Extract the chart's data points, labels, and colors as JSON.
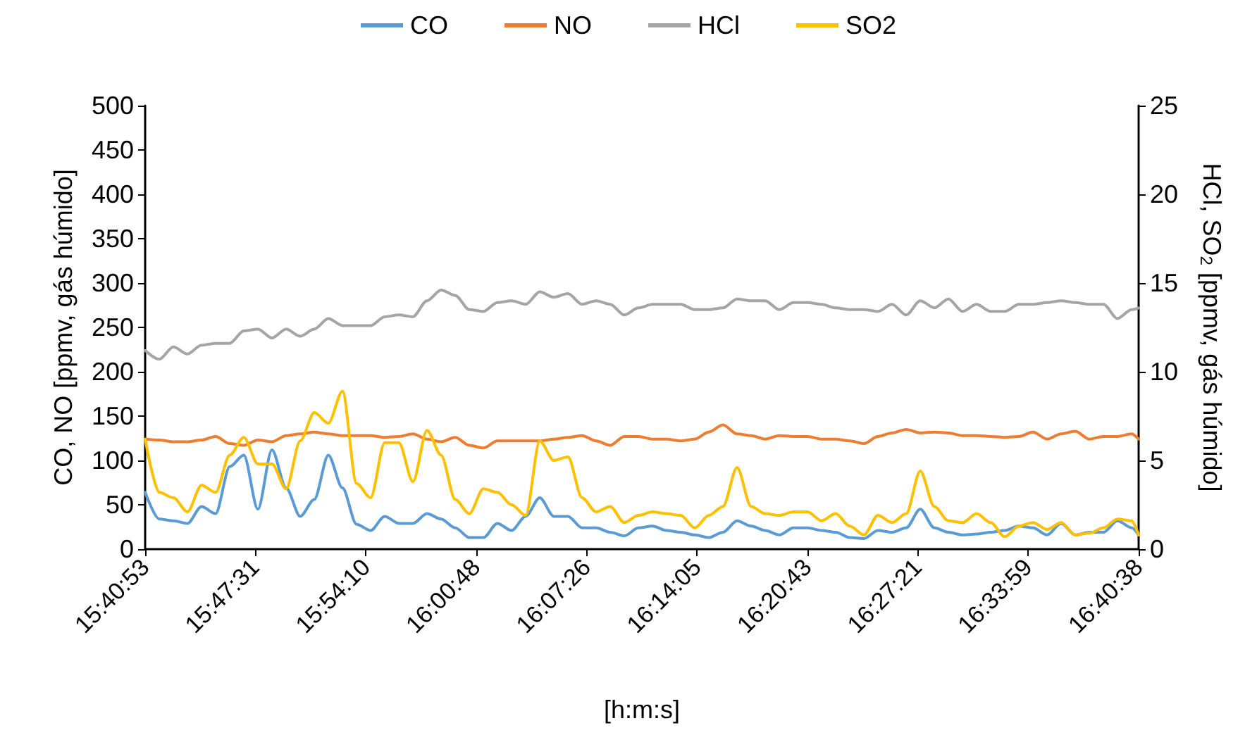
{
  "chart_data": {
    "type": "line",
    "xlabel": "[h:m:s]",
    "ylabel": "CO, NO [ppmv, gás húmido]",
    "y2label": "HCl, SO$_{2}$ [ppmv, gás húmido]",
    "x": [
      15.6814,
      15.6955,
      15.7097,
      15.7238,
      15.7379,
      15.752,
      15.7662,
      15.7803,
      15.7944,
      15.8085,
      15.8227,
      15.8368,
      15.8509,
      15.865,
      15.8792,
      15.8933,
      15.9074,
      15.9215,
      15.9357,
      15.9498,
      15.9639,
      15.978,
      15.9922,
      16.0063,
      16.0204,
      16.0345,
      16.0487,
      16.0628,
      16.0769,
      16.091,
      16.1052,
      16.1193,
      16.1334,
      16.1475,
      16.1617,
      16.1758,
      16.1899,
      16.204,
      16.2182,
      16.2323,
      16.2464,
      16.2605,
      16.2747,
      16.2888,
      16.3029,
      16.317,
      16.3312,
      16.3453,
      16.3594,
      16.3735,
      16.3877,
      16.4018,
      16.4159,
      16.43,
      16.4442,
      16.4583,
      16.4724,
      16.4865,
      16.5007,
      16.5148,
      16.5289,
      16.543,
      16.5572,
      16.5713,
      16.5854,
      16.5995,
      16.6137,
      16.6278,
      16.6419,
      16.656,
      16.6702,
      16.6772
    ],
    "series": [
      {
        "name": "CO",
        "color": "#5b9bd5",
        "values": [
          64,
          34,
          32,
          29,
          48,
          40,
          93,
          106,
          45,
          112,
          69,
          37,
          56,
          106,
          69,
          28,
          21,
          37,
          29,
          29,
          40,
          34,
          24,
          13,
          13,
          29,
          21,
          37,
          58,
          37,
          37,
          24,
          24,
          19,
          15,
          24,
          26,
          21,
          19,
          16,
          13,
          19,
          32,
          26,
          21,
          16,
          24,
          24,
          21,
          19,
          13,
          12,
          21,
          19,
          24,
          45,
          24,
          19,
          16,
          17,
          19,
          21,
          26,
          24,
          16,
          29,
          16,
          19,
          19,
          32,
          24,
          16
        ]
      },
      {
        "name": "NO",
        "color": "#ed7d31",
        "values": [
          124,
          123,
          121,
          121,
          123,
          127,
          119,
          117,
          123,
          121,
          128,
          130,
          132,
          130,
          128,
          128,
          128,
          126,
          127,
          130,
          124,
          121,
          126,
          117,
          114,
          122,
          122,
          122,
          122,
          124,
          126,
          128,
          122,
          117,
          127,
          127,
          124,
          124,
          122,
          124,
          132,
          140,
          130,
          128,
          124,
          128,
          127,
          127,
          124,
          124,
          122,
          119,
          127,
          131,
          135,
          131,
          132,
          131,
          128,
          128,
          127,
          126,
          127,
          132,
          124,
          130,
          133,
          124,
          127,
          127,
          130,
          124
        ]
      },
      {
        "name": "HCl",
        "color": "#a5a5a5",
        "axis": "y2",
        "values": [
          11.2,
          10.7,
          11.4,
          11.0,
          11.5,
          11.6,
          11.6,
          12.3,
          12.4,
          11.9,
          12.4,
          12.0,
          12.4,
          13.0,
          12.6,
          12.6,
          12.6,
          13.1,
          13.2,
          13.1,
          14.0,
          14.6,
          14.3,
          13.5,
          13.4,
          13.9,
          14.0,
          13.8,
          14.5,
          14.2,
          14.4,
          13.8,
          14.0,
          13.8,
          13.2,
          13.6,
          13.8,
          13.8,
          13.8,
          13.5,
          13.5,
          13.6,
          14.1,
          14.0,
          14.0,
          13.5,
          13.9,
          13.9,
          13.8,
          13.6,
          13.5,
          13.5,
          13.4,
          13.8,
          13.2,
          14.0,
          13.6,
          14.1,
          13.4,
          13.8,
          13.4,
          13.4,
          13.8,
          13.8,
          13.9,
          14.0,
          13.9,
          13.8,
          13.8,
          13.0,
          13.5,
          13.6
        ]
      },
      {
        "name": "SO2",
        "color": "#ffc000",
        "axis": "y2",
        "values": [
          6.2,
          3.2,
          2.9,
          2.1,
          3.6,
          3.2,
          5.3,
          6.3,
          4.8,
          4.8,
          3.4,
          6.1,
          7.7,
          7.1,
          8.9,
          3.7,
          2.9,
          6.0,
          6.0,
          3.8,
          6.7,
          5.3,
          2.8,
          2.0,
          3.4,
          3.2,
          2.5,
          1.9,
          6.1,
          5.0,
          5.2,
          2.9,
          2.1,
          2.4,
          1.5,
          1.9,
          2.1,
          2.0,
          1.9,
          1.2,
          1.9,
          2.4,
          4.6,
          2.4,
          2.0,
          1.9,
          2.1,
          2.1,
          1.6,
          2.0,
          1.3,
          0.8,
          1.9,
          1.5,
          2.0,
          4.4,
          2.4,
          1.6,
          1.5,
          2.0,
          1.5,
          0.7,
          1.3,
          1.5,
          1.1,
          1.5,
          0.8,
          0.9,
          1.2,
          1.7,
          1.6,
          0.8
        ]
      }
    ],
    "xlim": [
      15.6814,
      16.6772
    ],
    "xticks": [
      {
        "value": 15.6814,
        "label": "15:40:53"
      },
      {
        "value": 15.7919,
        "label": "15:47:31"
      },
      {
        "value": 15.9028,
        "label": "15:54:10"
      },
      {
        "value": 16.0133,
        "label": "16:00:48"
      },
      {
        "value": 16.1239,
        "label": "16:07:26"
      },
      {
        "value": 16.2347,
        "label": "16:14:05"
      },
      {
        "value": 16.3453,
        "label": "16:20:43"
      },
      {
        "value": 16.4558,
        "label": "16:27:21"
      },
      {
        "value": 16.5664,
        "label": "16:33:59"
      },
      {
        "value": 16.6772,
        "label": "16:40:38"
      }
    ],
    "ylim": [
      0,
      500
    ],
    "yticks": [
      0,
      50,
      100,
      150,
      200,
      250,
      300,
      350,
      400,
      450,
      500
    ],
    "y2lim": [
      0,
      25
    ],
    "y2ticks": [
      0,
      5,
      10,
      15,
      20,
      25
    ],
    "grid": false,
    "legend": "top",
    "marker": "none",
    "line_style": "solid"
  }
}
